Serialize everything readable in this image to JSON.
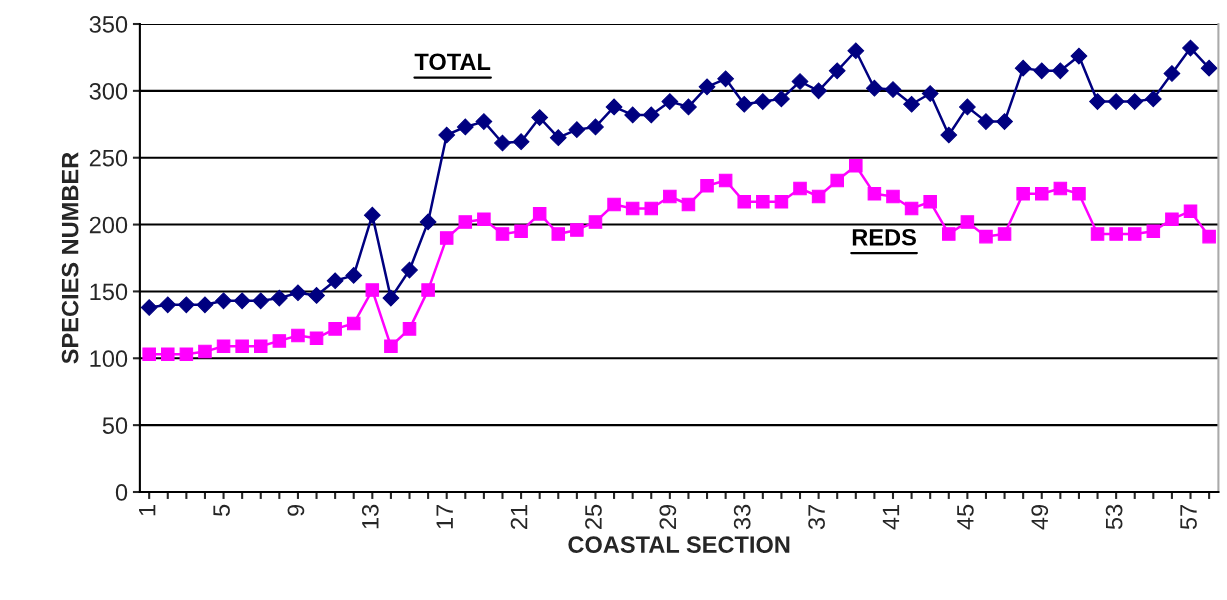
{
  "chart_data": {
    "type": "line",
    "xlabel": "COASTAL SECTION",
    "ylabel": "SPECIES NUMBER",
    "categories": [
      "1",
      null,
      null,
      null,
      "5",
      null,
      null,
      null,
      "9",
      null,
      null,
      null,
      "13",
      null,
      null,
      null,
      "17",
      null,
      null,
      null,
      "21",
      null,
      null,
      null,
      "25",
      null,
      null,
      null,
      "29",
      null,
      null,
      null,
      "33",
      null,
      null,
      null,
      "37",
      null,
      null,
      null,
      "41",
      null,
      null,
      null,
      "45",
      null,
      null,
      null,
      "49",
      null,
      null,
      null,
      "53",
      null,
      null,
      null,
      "57",
      null
    ],
    "series": [
      {
        "name": "TOTAL",
        "color": "#000080",
        "marker": "diamond",
        "values": [
          138,
          140,
          140,
          140,
          143,
          143,
          143,
          145,
          149,
          147,
          158,
          162,
          207,
          145,
          166,
          202,
          267,
          273,
          277,
          261,
          262,
          280,
          265,
          271,
          273,
          288,
          282,
          282,
          292,
          288,
          303,
          309,
          290,
          292,
          294,
          307,
          300,
          315,
          330,
          302,
          301,
          290,
          298,
          267,
          288,
          277,
          277,
          317,
          315,
          315,
          326,
          292,
          292,
          292,
          294,
          313,
          332,
          317
        ]
      },
      {
        "name": "REDS",
        "color": "#ff00ff",
        "marker": "square",
        "values": [
          103,
          103,
          103,
          105,
          109,
          109,
          109,
          113,
          117,
          115,
          122,
          126,
          151,
          109,
          122,
          151,
          190,
          202,
          204,
          193,
          195,
          208,
          193,
          196,
          202,
          215,
          212,
          212,
          221,
          215,
          229,
          233,
          217,
          217,
          217,
          227,
          221,
          233,
          244,
          223,
          221,
          212,
          217,
          193,
          202,
          191,
          193,
          223,
          223,
          227,
          223,
          193,
          193,
          193,
          195,
          204,
          210,
          191
        ]
      }
    ],
    "ylim": [
      0,
      350
    ],
    "yticks": [
      0,
      50,
      100,
      150,
      200,
      250,
      300,
      350
    ],
    "grid": "y",
    "legend": false
  }
}
